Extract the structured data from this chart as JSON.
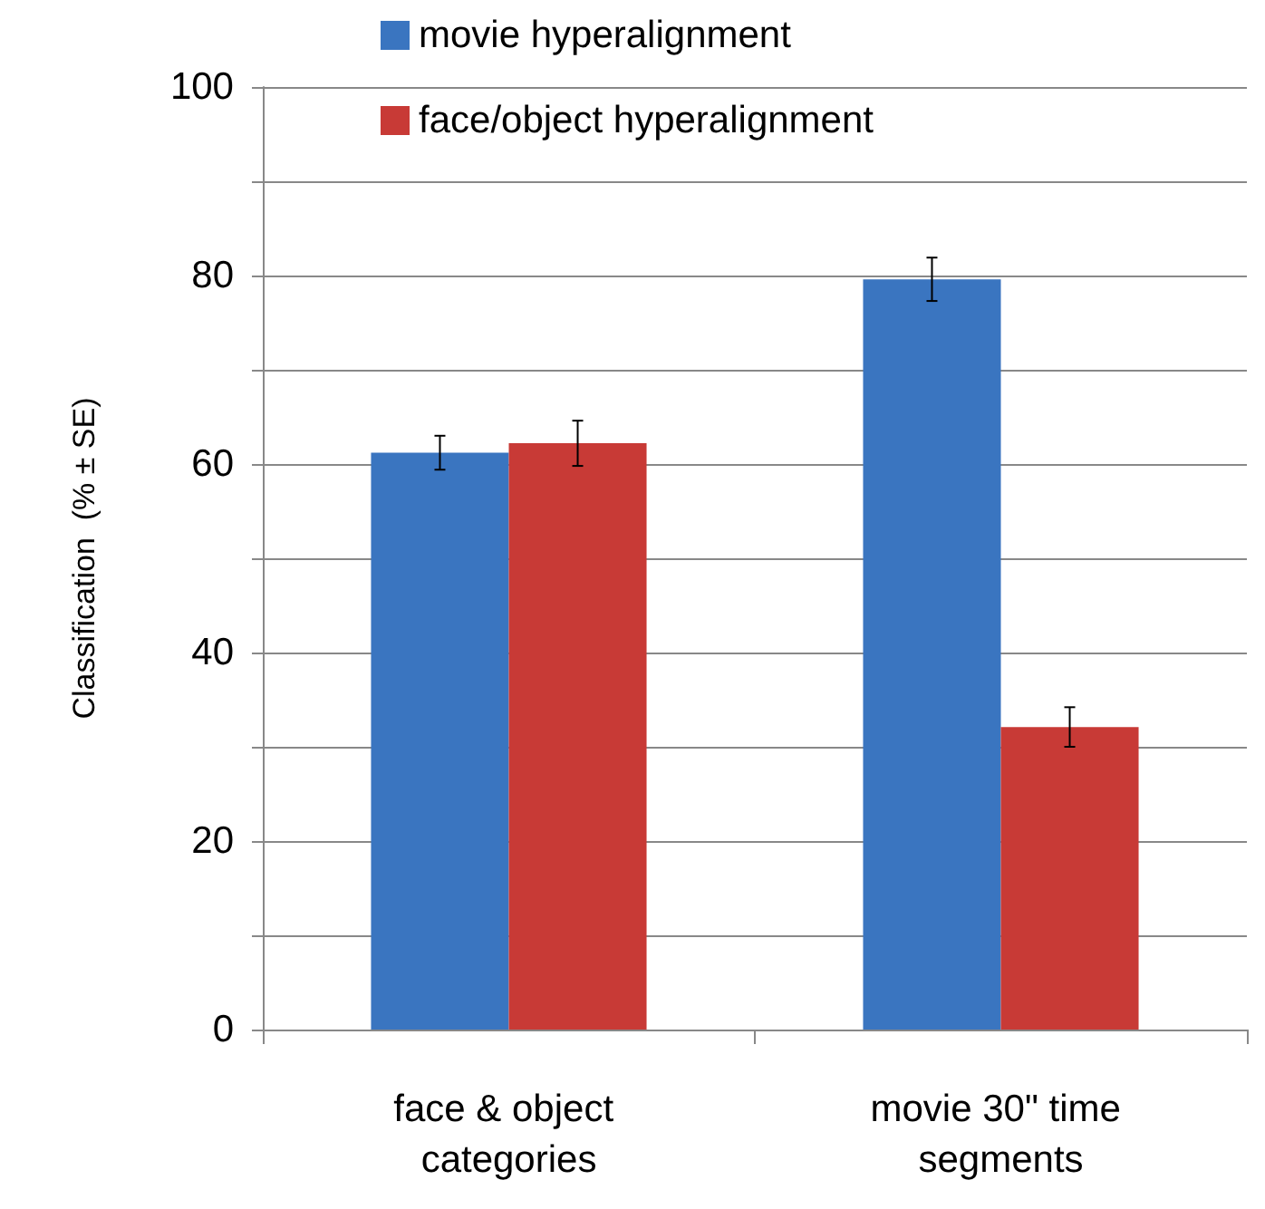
{
  "chart_data": {
    "type": "bar",
    "ylabel": "Classification  (% ± SE)",
    "categories": [
      "face & object categories",
      "movie 30\" time segments"
    ],
    "series": [
      {
        "name": "movie hyperalignment",
        "color": "#3a75c0",
        "values": [
          61.2,
          79.6
        ],
        "errors": [
          1.8,
          2.3
        ]
      },
      {
        "name": "face/object hyperalignment",
        "color": "#c83a36",
        "values": [
          62.2,
          32.1
        ],
        "errors": [
          2.4,
          2.1
        ]
      }
    ],
    "ylim": [
      0,
      100
    ],
    "yticks": [
      0,
      {
        "value": 10,
        "label": null
      },
      20,
      {
        "value": 30,
        "label": null
      },
      40,
      {
        "value": 50,
        "label": null
      },
      60,
      {
        "value": 70,
        "label": null
      },
      80,
      {
        "value": 90,
        "label": null
      },
      100
    ],
    "grid": "y",
    "legend": "top"
  }
}
